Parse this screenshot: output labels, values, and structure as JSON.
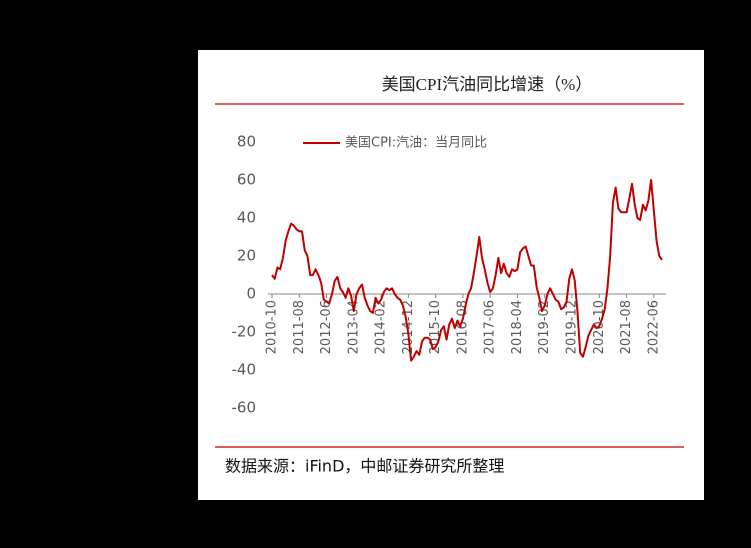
{
  "chart_data": {
    "type": "line",
    "title": "美国CPI汽油同比增速（%）",
    "source": "数据来源：iFinD，中邮证券研究所整理",
    "categories": [
      "2010-10",
      null,
      null,
      null,
      null,
      null,
      null,
      null,
      null,
      null,
      "2011-08",
      null,
      null,
      null,
      null,
      null,
      null,
      null,
      null,
      null,
      "2012-06",
      null,
      null,
      null,
      null,
      null,
      null,
      null,
      null,
      null,
      "2013-04",
      null,
      null,
      null,
      null,
      null,
      null,
      null,
      null,
      null,
      "2014-02",
      null,
      null,
      null,
      null,
      null,
      null,
      null,
      null,
      null,
      "2014-12",
      null,
      null,
      null,
      null,
      null,
      null,
      null,
      null,
      null,
      "2015-10",
      null,
      null,
      null,
      null,
      null,
      null,
      null,
      null,
      null,
      "2016-08",
      null,
      null,
      null,
      null,
      null,
      null,
      null,
      null,
      null,
      "2017-06",
      null,
      null,
      null,
      null,
      null,
      null,
      null,
      null,
      null,
      "2018-04",
      null,
      null,
      null,
      null,
      null,
      null,
      null,
      null,
      null,
      "2019-02",
      null,
      null,
      null,
      null,
      null,
      null,
      null,
      null,
      null,
      "2019-12",
      null,
      null,
      null,
      null,
      null,
      null,
      null,
      null,
      null,
      "2020-10",
      null,
      null,
      null,
      null,
      null,
      null,
      null,
      null,
      null,
      "2021-08",
      null,
      null,
      null,
      null,
      null,
      null,
      null,
      null,
      null,
      "2022-06",
      null,
      null,
      null
    ],
    "series": [
      {
        "name": "美国CPI:汽油：当月同比",
        "color": "#c00000",
        "values": [
          10,
          8,
          14,
          13,
          19,
          28,
          33,
          37,
          36,
          34,
          33,
          33,
          23,
          20,
          10,
          10,
          13,
          10,
          6,
          -3,
          -4,
          -5,
          0,
          7,
          9,
          3,
          1,
          -2,
          3,
          -1,
          -9,
          0,
          3,
          5,
          -2,
          -6,
          -9,
          -10,
          -2,
          -5,
          -3,
          1,
          3,
          2,
          3,
          0,
          -2,
          -3,
          -6,
          -12,
          -21,
          -35,
          -33,
          -30,
          -32,
          -25,
          -23,
          -23,
          -24,
          -29,
          -28,
          -25,
          -19,
          -17,
          -24,
          -16,
          -13,
          -18,
          -14,
          -17,
          -13,
          -6,
          0,
          3,
          11,
          20,
          30,
          19,
          13,
          6,
          1,
          3,
          10,
          19,
          11,
          16,
          11,
          9,
          13,
          12,
          13,
          22,
          24,
          25,
          20,
          15,
          15,
          4,
          -2,
          -9,
          -6,
          0,
          3,
          0,
          -3,
          -4,
          -8,
          -7,
          -4,
          8,
          13,
          7,
          -9,
          -31,
          -33,
          -28,
          -22,
          -19,
          -16,
          -18,
          -17,
          -13,
          -8,
          3,
          20,
          48,
          56,
          45,
          43,
          43,
          43,
          50,
          58,
          47,
          40,
          39,
          47,
          44,
          49,
          60,
          44,
          28,
          20,
          18
        ]
      }
    ],
    "ylim": [
      -60,
      80
    ],
    "yticks": [
      -60,
      -40,
      -20,
      0,
      20,
      40,
      60,
      80
    ],
    "grid": false,
    "legend": "top-left"
  }
}
